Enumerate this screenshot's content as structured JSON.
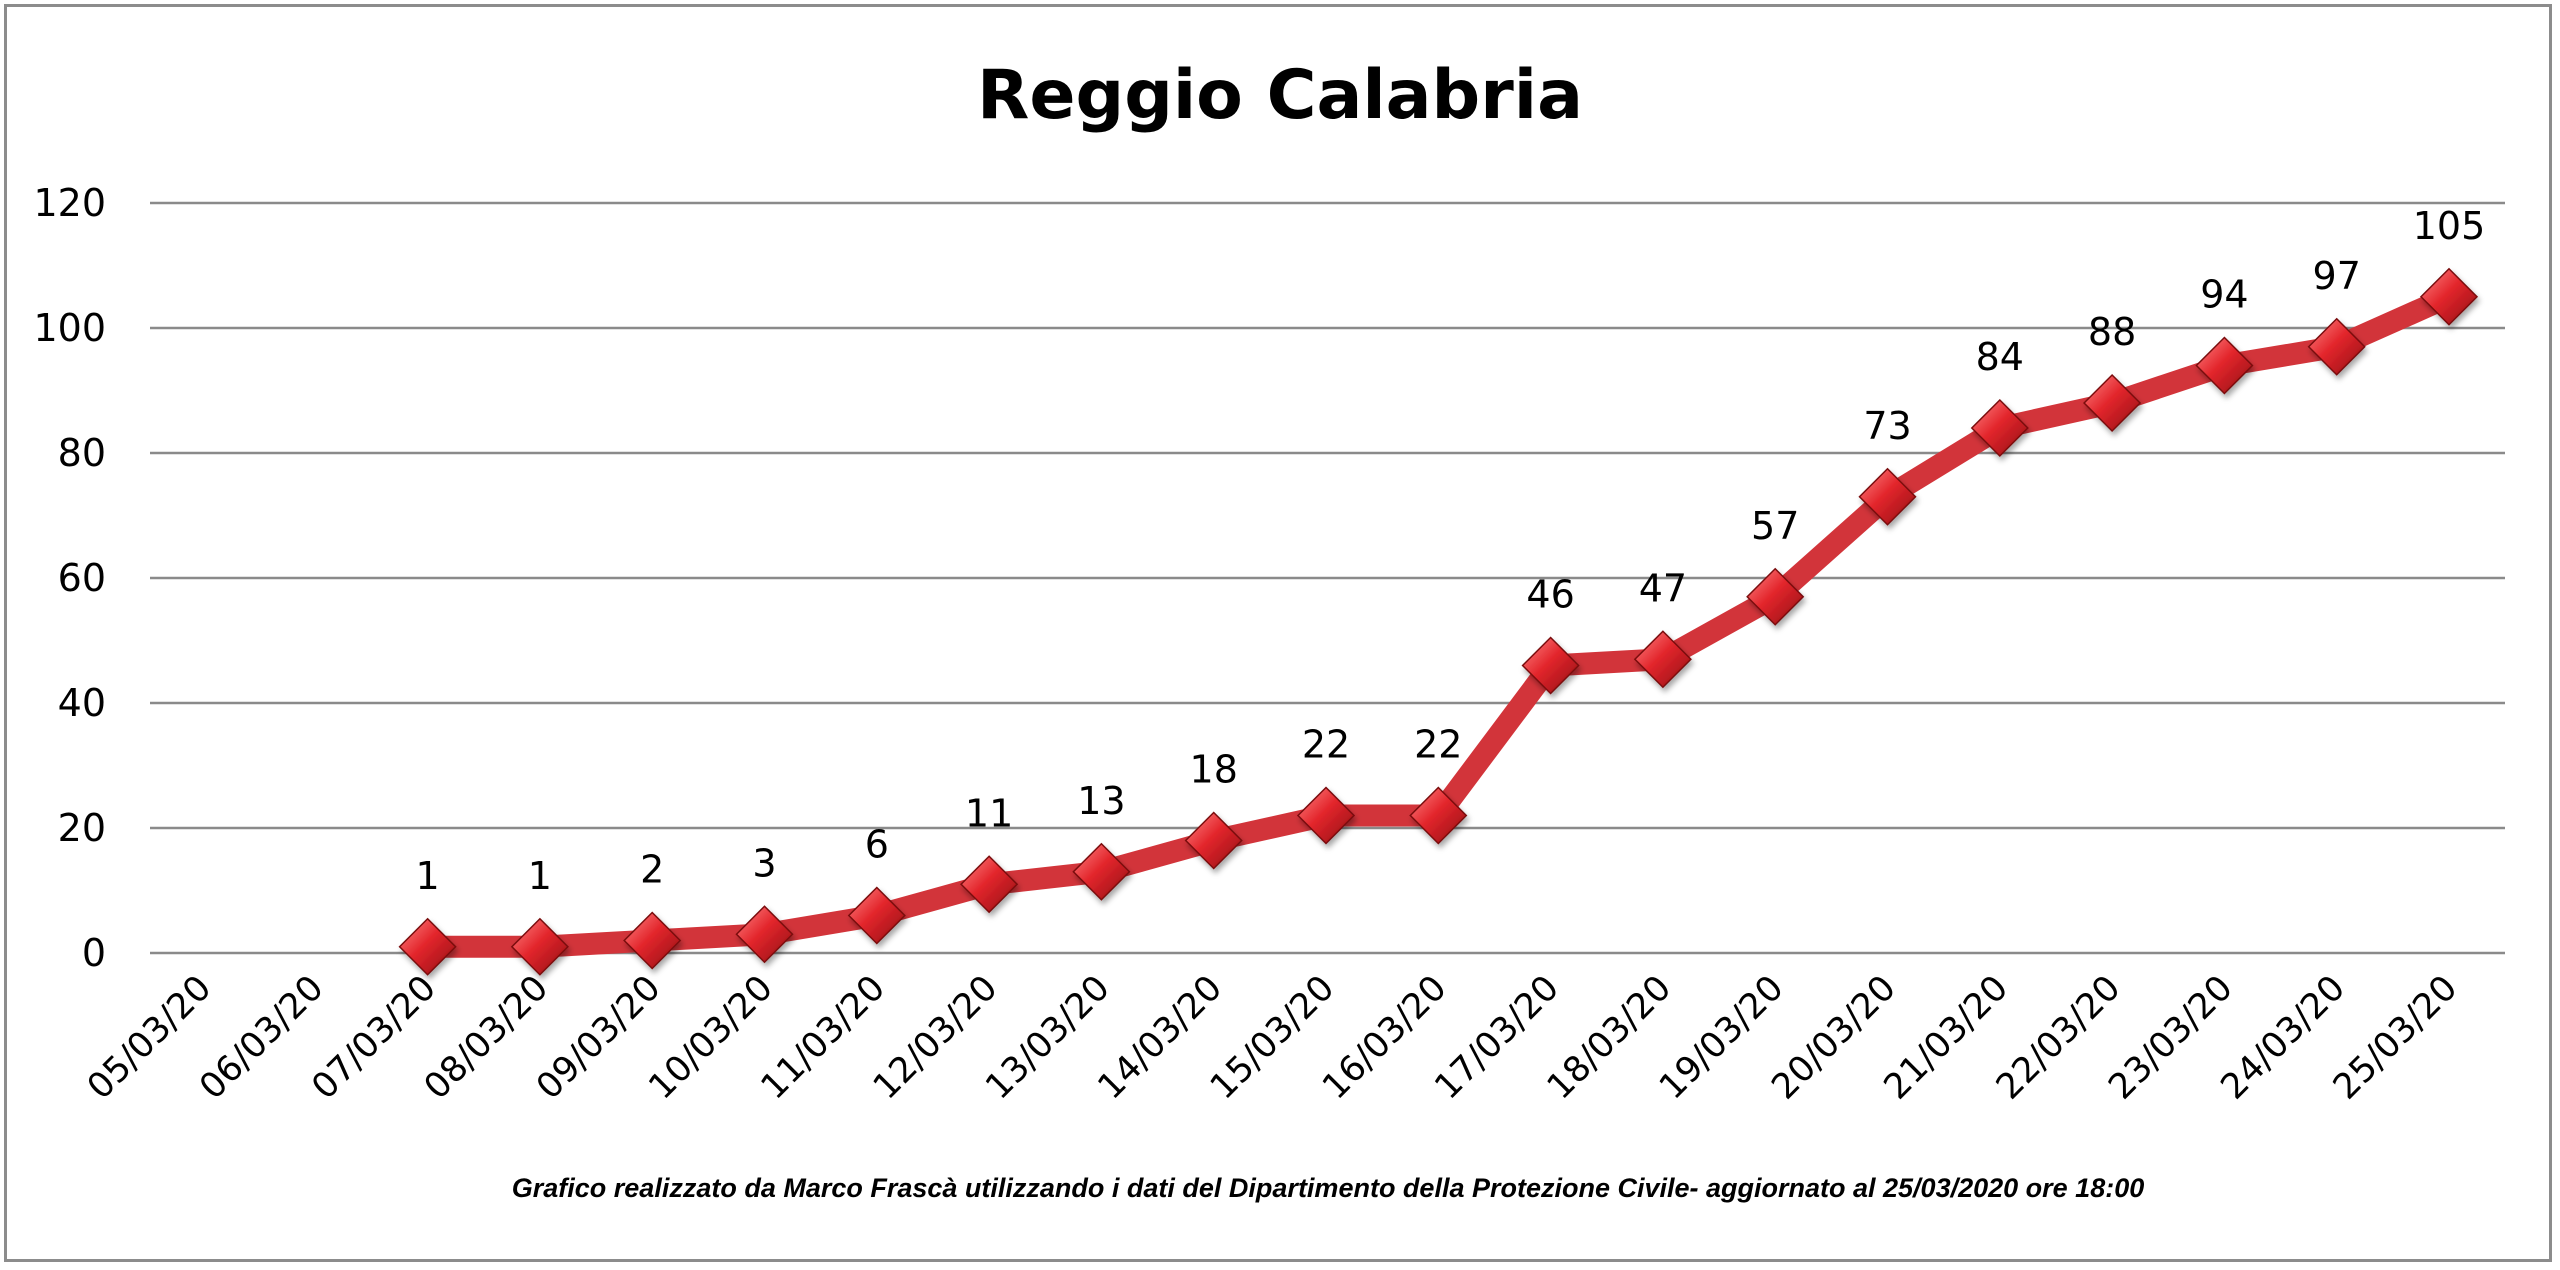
{
  "chart_data": {
    "type": "line",
    "title": "Reggio Calabria",
    "credit": "Grafico  realizzato da Marco Frascà  utilizzando i dati del Dipartimento  della Protezione Civile- aggiornato al 25/03/2020 ore 18:00",
    "categories": [
      "05/03/20",
      "06/03/20",
      "07/03/20",
      "08/03/20",
      "09/03/20",
      "10/03/20",
      "11/03/20",
      "12/03/20",
      "13/03/20",
      "14/03/20",
      "15/03/20",
      "16/03/20",
      "17/03/20",
      "18/03/20",
      "19/03/20",
      "20/03/20",
      "21/03/20",
      "22/03/20",
      "23/03/20",
      "24/03/20",
      "25/03/20"
    ],
    "series": [
      {
        "values": [
          null,
          null,
          1,
          1,
          2,
          3,
          6,
          11,
          13,
          18,
          22,
          22,
          46,
          47,
          57,
          73,
          84,
          88,
          94,
          97,
          105
        ]
      }
    ],
    "data_labels": [
      "",
      "",
      "1",
      "1",
      "2",
      "3",
      "6",
      "11",
      "13",
      "18",
      "22",
      "22",
      "46",
      "47",
      "57",
      "73",
      "84",
      "88",
      "94",
      "97",
      "105"
    ],
    "yticks": [
      "0",
      "20",
      "40",
      "60",
      "80",
      "100",
      "120"
    ],
    "ylim": [
      0,
      120
    ],
    "grid": true,
    "legend": "none",
    "line_color": "#d2343a",
    "marker_color": "#e0282e",
    "marker_shape": "diamond"
  }
}
